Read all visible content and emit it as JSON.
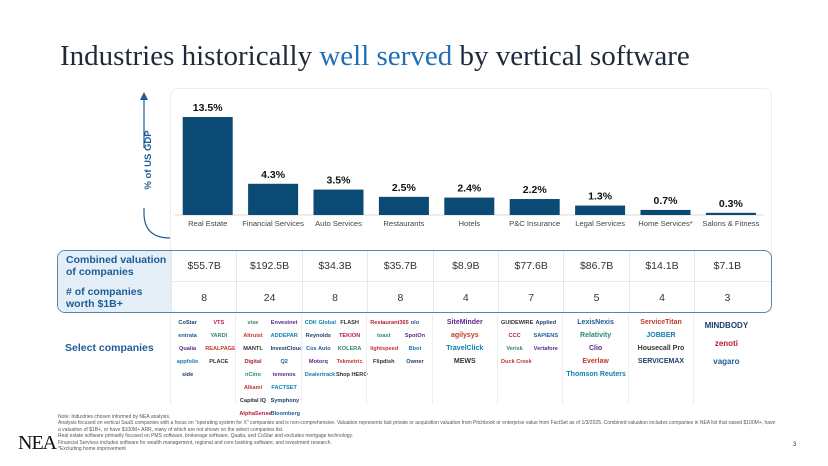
{
  "title": {
    "part1": "Industries historically ",
    "accent": "well served",
    "part2": " by vertical software"
  },
  "chart_data": {
    "type": "bar",
    "title": "",
    "ylabel": "% of US GDP",
    "xlabel": "",
    "categories": [
      "Real Estate",
      "Financial Services",
      "Auto Services",
      "Restaurants",
      "Hotels",
      "P&C Insurance",
      "Legal Services",
      "Home Services*",
      "Salons & Fitness"
    ],
    "values": [
      13.5,
      4.3,
      3.5,
      2.5,
      2.4,
      2.2,
      1.3,
      0.7,
      0.3
    ],
    "data_labels": [
      "13.5%",
      "4.3%",
      "3.5%",
      "2.5%",
      "2.4%",
      "2.2%",
      "1.3%",
      "0.7%",
      "0.3%"
    ],
    "ylim": [
      0,
      14
    ],
    "grid": false,
    "bar_color": "#0b4a74"
  },
  "table": {
    "valuation_label": "Combined valuation of companies",
    "valuations": [
      "$55.7B",
      "$192.5B",
      "$34.3B",
      "$35.7B",
      "$8.9B",
      "$77.6B",
      "$86.7B",
      "$14.1B",
      "$7.1B"
    ],
    "count_label": "# of companies worth $1B+",
    "counts": [
      "8",
      "24",
      "8",
      "8",
      "4",
      "7",
      "5",
      "4",
      "3"
    ]
  },
  "select_label": "Select companies",
  "logos": [
    [
      "CoStar",
      "VTS",
      "entrata",
      "YARDI",
      "Qualia",
      "REALPAGE",
      "appfolio",
      "PLACE",
      "side"
    ],
    [
      "vise",
      "Envestnet",
      "Altruist",
      "ADDEPAR",
      "MANTL",
      "InvestCloud",
      "Digital",
      "Q2",
      "nCino",
      "temenos",
      "Alkami",
      "FACTSET",
      "Capital IQ",
      "Symphony",
      "AlphaSense",
      "Bloomberg"
    ],
    [
      "CDK Global",
      "FLASH",
      "Reynolds",
      "TEKION",
      "Cox Auto",
      "KOLERA",
      "Motorq",
      "Tekmetric",
      "Dealertrack",
      "Shop HERO"
    ],
    [
      "Restaurant365",
      "olo",
      "toast",
      "SpotOn",
      "lightspeed",
      "Bbot",
      "Flipdish",
      "Owner"
    ],
    [
      "SiteMinder",
      "agilysys",
      "TravelClick",
      "MEWS"
    ],
    [
      "GUIDEWIRE",
      "Applied",
      "CCC",
      "SAPIENS",
      "Verisk",
      "Vertafore",
      "Duck Creek"
    ],
    [
      "LexisNexis",
      "Relativity",
      "Clio",
      "Everlaw",
      "Thomson Reuters"
    ],
    [
      "ServiceTitan",
      "JOBBER",
      "Housecall Pro",
      "SERVICEMAX"
    ],
    [
      "MINDBODY",
      "zenoti",
      "vagaro"
    ]
  ],
  "notes": [
    "Note: Industries chosen informed by NEA analysis.",
    "Analysis focused on vertical SaaS companies with a focus on \"operating system for X\" companies and is non-comprehensive. Valuation represents last private or acquisition valuation from Pitchbook or enterprise value from FactSet as of 1/3/2025. Combined valuation includes companies in NEA list that raised $100M+, have a valuation of $1B+, or have $100M+ ARR, many of which are not shown on the select companies list.",
    "Real estate software primarily focused on PMS software, brokerage software, Qualia, and CoStar and excludes mortgage technology.",
    "Financial Services includes software for wealth management, regional and core banking software, and investment research.",
    "*Excluding home improvement"
  ],
  "logo_text": "NEA",
  "page_number": "3"
}
